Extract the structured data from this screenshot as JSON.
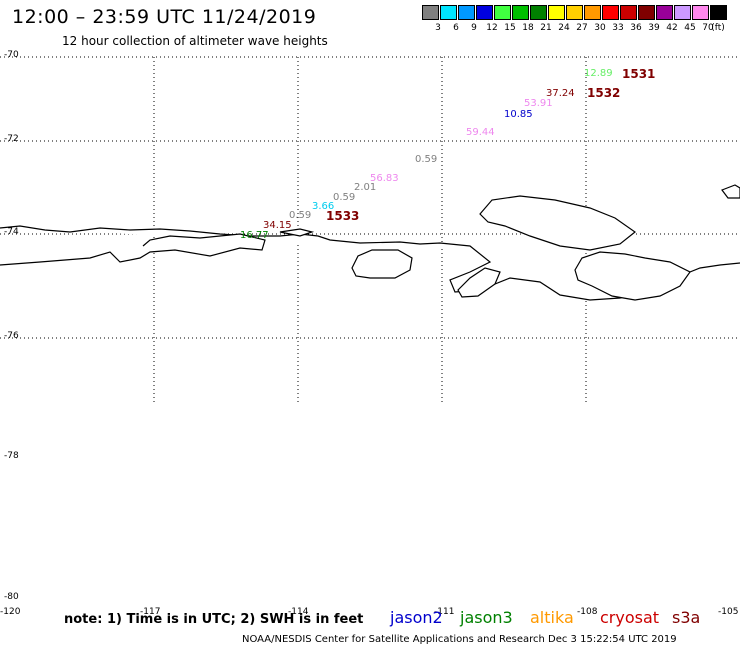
{
  "header": {
    "title": "12:00 – 23:59 UTC 11/24/2019",
    "subtitle": "12 hour collection of altimeter wave heights"
  },
  "color_scale": {
    "unit_label": "(ft)",
    "bins": [
      {
        "label": "3",
        "color": "#808080"
      },
      {
        "label": "6",
        "color": "#00e5ff"
      },
      {
        "label": "9",
        "color": "#0099ff"
      },
      {
        "label": "12",
        "color": "#0000e0"
      },
      {
        "label": "15",
        "color": "#40ff40"
      },
      {
        "label": "18",
        "color": "#00c000"
      },
      {
        "label": "21",
        "color": "#008000"
      },
      {
        "label": "24",
        "color": "#ffff00"
      },
      {
        "label": "27",
        "color": "#ffd000"
      },
      {
        "label": "30",
        "color": "#ff9900"
      },
      {
        "label": "33",
        "color": "#ff0000"
      },
      {
        "label": "36",
        "color": "#cc0000"
      },
      {
        "label": "39",
        "color": "#800000"
      },
      {
        "label": "42",
        "color": "#990099"
      },
      {
        "label": "45",
        "color": "#cc99ff"
      },
      {
        "label": "70",
        "color": "#ff88ee"
      },
      {
        "label": "",
        "color": "#000000"
      }
    ]
  },
  "axes": {
    "lat_labels": [
      "-70",
      "-72",
      "-74",
      "-76",
      "-78",
      "-80"
    ],
    "lon_labels": [
      "-120",
      "-117",
      "-114",
      "-111",
      "-108",
      "-105"
    ]
  },
  "observations": [
    {
      "text": "12.89",
      "color": "#66ee66"
    },
    {
      "text": "37.24",
      "color": "#800000"
    },
    {
      "text": "53.91",
      "color": "#ee88ee"
    },
    {
      "text": "10.85",
      "color": "#0000cc"
    },
    {
      "text": "59.44",
      "color": "#ee88ee"
    },
    {
      "text": "0.59",
      "color": "#808080"
    },
    {
      "text": "56.83",
      "color": "#ee88ee"
    },
    {
      "text": "2.01",
      "color": "#808080"
    },
    {
      "text": "0.59",
      "color": "#808080"
    },
    {
      "text": "3.66",
      "color": "#00ccee"
    },
    {
      "text": "0.59",
      "color": "#808080"
    },
    {
      "text": "34.15",
      "color": "#800000"
    },
    {
      "text": "16.77",
      "color": "#008000"
    }
  ],
  "pass_times": [
    "1531",
    "1532",
    "1533"
  ],
  "footer": {
    "note": "note: 1) Time is in UTC; 2) SWH is in feet",
    "satellites": [
      {
        "name": "jason2",
        "color": "#0000cc"
      },
      {
        "name": "jason3",
        "color": "#008000"
      },
      {
        "name": "altika",
        "color": "#ff9900"
      },
      {
        "name": "cryosat",
        "color": "#cc0000"
      },
      {
        "name": "s3a",
        "color": "#800000"
      }
    ],
    "credit": "NOAA/NESDIS Center for Satellite Applications and Research   Dec  3 15:22:54 UTC 2019"
  }
}
